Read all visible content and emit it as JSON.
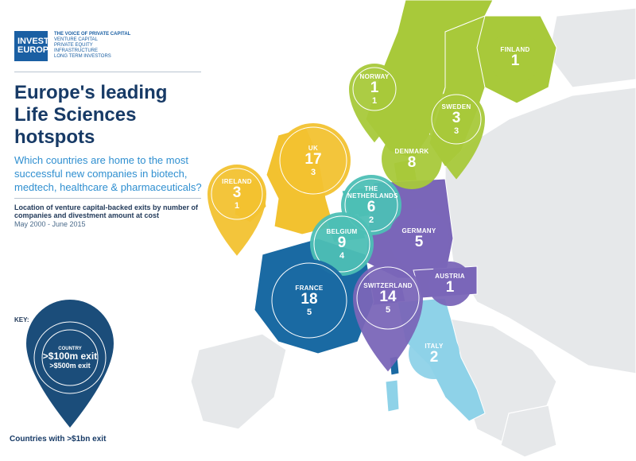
{
  "logo": {
    "line1": "INVEST",
    "line2": "EUROPE",
    "tagline_title": "THE VOICE OF PRIVATE CAPITAL",
    "tagline_lines": [
      "VENTURE CAPITAL",
      "PRIVATE EQUITY",
      "INFRASTRUCTURE",
      "LONG TERM INVESTORS"
    ]
  },
  "title": "Europe's leading Life Sciences hotspots",
  "subtitle": "Which countries are home to the most successful new companies in biotech, medtech, healthcare & pharmaceuticals?",
  "note": "Location of venture capital-backed exits by number of companies and divestment amount at cost",
  "date_range": "May 2000 - June 2015",
  "key": {
    "label": "KEY:",
    "country": "COUNTRY",
    "line1": ">$100m exit",
    "line2": ">$500m exit",
    "caption": "Countries with >$1bn exit"
  },
  "colors": {
    "uk_ireland": "#f2c230",
    "nordics": "#a8c93a",
    "benelux": "#4dbfb5",
    "germany_swiss_austria": "#7a66b8",
    "france": "#1a6aa3",
    "italy": "#8ed2e8",
    "land": "#e6e8ea",
    "key_marker": "#1b4d7a"
  },
  "markers": [
    {
      "name": "FINLAND",
      "count": "1",
      "amount": "",
      "pin": false
    },
    {
      "name": "NORWAY",
      "count": "1",
      "amount": "1",
      "pin": true
    },
    {
      "name": "SWEDEN",
      "count": "3",
      "amount": "3",
      "pin": true
    },
    {
      "name": "DENMARK",
      "count": "8",
      "amount": "",
      "pin": false
    },
    {
      "name": "UK",
      "count": "17",
      "amount": "3",
      "pin": false
    },
    {
      "name": "IRELAND",
      "count": "3",
      "amount": "1",
      "pin": true
    },
    {
      "name": "THE NETHERLANDS",
      "count": "6",
      "amount": "2",
      "pin": false
    },
    {
      "name": "BELGIUM",
      "count": "9",
      "amount": "4",
      "pin": false
    },
    {
      "name": "GERMANY",
      "count": "5",
      "amount": "",
      "pin": false
    },
    {
      "name": "AUSTRIA",
      "count": "1",
      "amount": "",
      "pin": false
    },
    {
      "name": "FRANCE",
      "count": "18",
      "amount": "5",
      "pin": false
    },
    {
      "name": "SWITZERLAND",
      "count": "14",
      "amount": "5",
      "pin": true
    },
    {
      "name": "ITALY",
      "count": "2",
      "amount": "",
      "pin": false
    }
  ]
}
